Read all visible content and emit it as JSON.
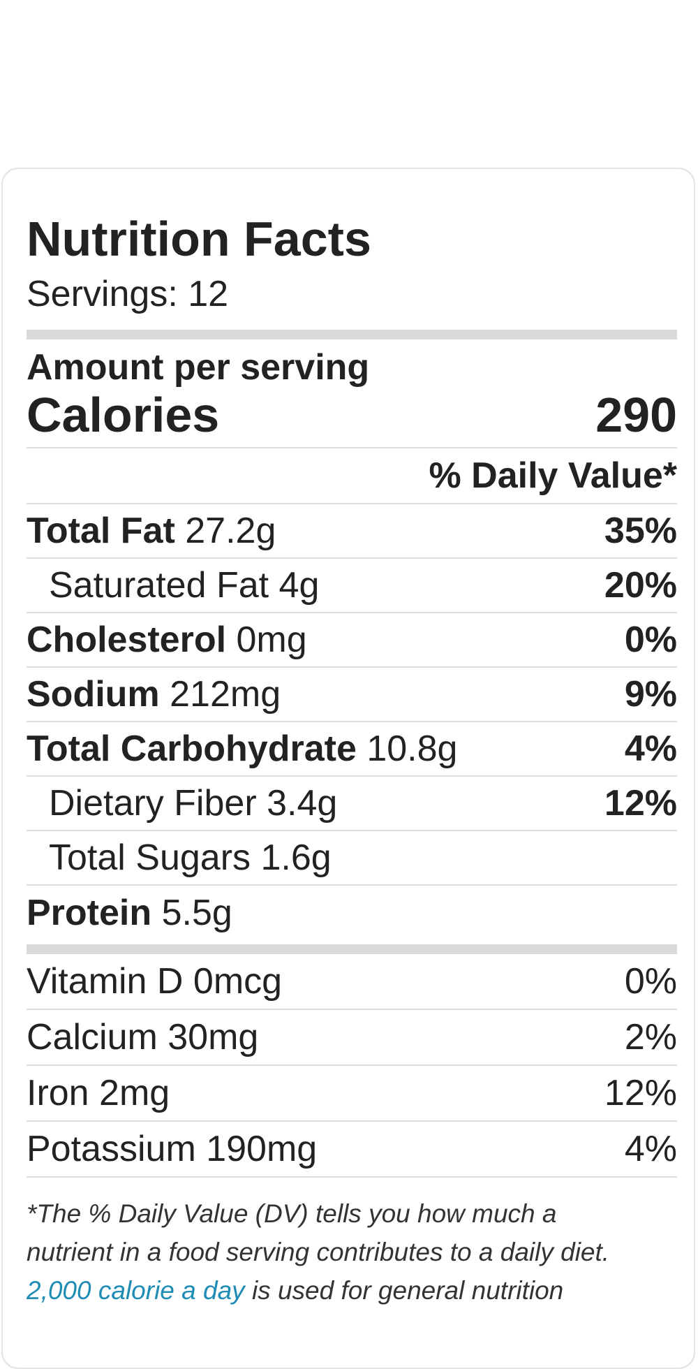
{
  "label": {
    "title": "Nutrition Facts",
    "servings": "Servings: 12",
    "amount_per_serving": "Amount per serving",
    "calories_label": "Calories",
    "calories_value": "290",
    "daily_value_header": "% Daily Value*"
  },
  "nutrients": [
    {
      "label": "Total Fat",
      "amount": "27.2g",
      "pct": "35%"
    },
    {
      "label": "Saturated Fat",
      "amount": "4g",
      "pct": "20%"
    },
    {
      "label": "Cholesterol",
      "amount": "0mg",
      "pct": "0%"
    },
    {
      "label": "Sodium",
      "amount": "212mg",
      "pct": "9%"
    },
    {
      "label": "Total Carbohydrate",
      "amount": "10.8g",
      "pct": "4%"
    },
    {
      "label": "Dietary Fiber",
      "amount": "3.4g",
      "pct": "12%"
    },
    {
      "label": "Total Sugars",
      "amount": "1.6g",
      "pct": ""
    },
    {
      "label": "Protein",
      "amount": "5.5g",
      "pct": ""
    }
  ],
  "vitamins": [
    {
      "label": "Vitamin D 0mcg",
      "pct": "0%"
    },
    {
      "label": "Calcium 30mg",
      "pct": "2%"
    },
    {
      "label": "Iron 2mg",
      "pct": "12%"
    },
    {
      "label": "Potassium 190mg",
      "pct": "4%"
    }
  ],
  "footnote": {
    "line1": "*The % Daily Value (DV) tells you how much a",
    "line2": "nutrient in a food serving contributes to a daily diet.",
    "link": "2,000 calorie a day",
    "line3_rest": " is used for general nutrition"
  },
  "colors": {
    "link": "#1e8cb4",
    "divider": "#d9d9d9"
  }
}
